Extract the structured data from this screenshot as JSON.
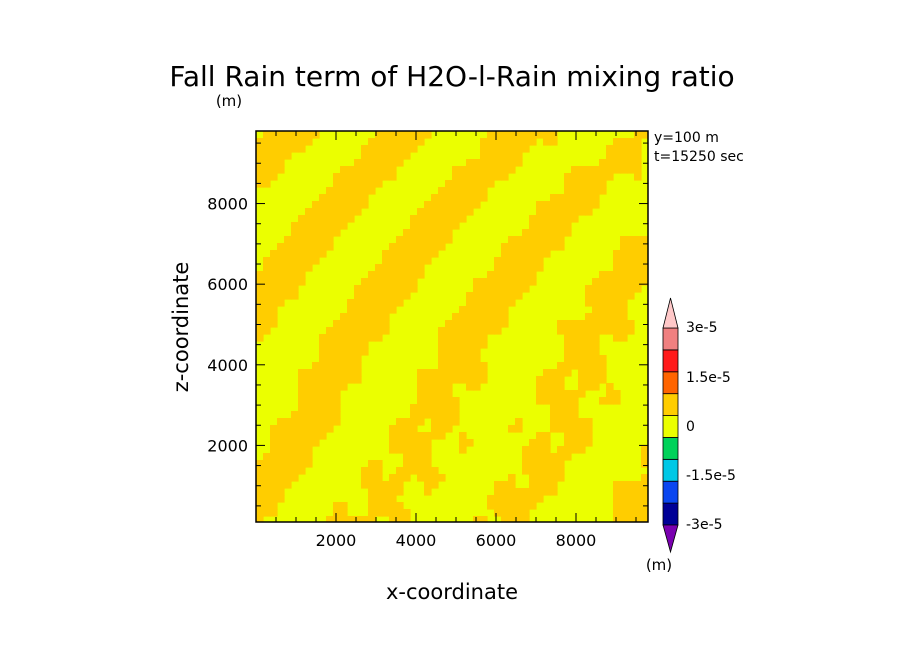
{
  "chart_data": {
    "type": "heatmap",
    "title": "Fall Rain term of H2O-l-Rain mixing ratio",
    "y_unit": "(m)",
    "annotations": [
      "y=100 m",
      "t=15250 sec"
    ],
    "xlabel": "x-coordinate",
    "ylabel": "z-coordinate",
    "xlim": [
      0,
      9800
    ],
    "ylim": [
      100,
      9800
    ],
    "x_ticks": [
      "2000",
      "4000",
      "6000",
      "8000"
    ],
    "y_ticks": [
      "2000",
      "4000",
      "6000",
      "8000"
    ],
    "colorbar": {
      "unit": "(m)",
      "tick_labels": [
        "3e-5",
        "1.5e-5",
        "0",
        "-1.5e-5",
        "-3e-5"
      ],
      "levels": [
        {
          "range": [
            -3.75e-05,
            -3e-05
          ],
          "color": "#7a00b0"
        },
        {
          "range": [
            -3e-05,
            -2.25e-05
          ],
          "color": "#000096"
        },
        {
          "range": [
            -2.25e-05,
            -1.5e-05
          ],
          "color": "#0a46f0"
        },
        {
          "range": [
            -1.5e-05,
            -7.5e-06
          ],
          "color": "#00c8e6"
        },
        {
          "range": [
            -7.5e-06,
            0
          ],
          "color": "#00d25a"
        },
        {
          "range": [
            0,
            7.5e-06
          ],
          "color": "#ebff00"
        },
        {
          "range": [
            7.5e-06,
            1.5e-05
          ],
          "color": "#ffcd00"
        },
        {
          "range": [
            1.5e-05,
            2.25e-05
          ],
          "color": "#ff6400"
        },
        {
          "range": [
            2.25e-05,
            3e-05
          ],
          "color": "#ff1a1a"
        },
        {
          "range": [
            3e-05,
            3.75e-05
          ],
          "color": "#f08080"
        },
        {
          "range": [
            3.75e-05,
            4.5e-05
          ],
          "color": "#ffc8c8"
        }
      ]
    },
    "field_values_present": [
      "0 to 0.75e-5",
      "0.75e-5 to 1.5e-5"
    ]
  }
}
